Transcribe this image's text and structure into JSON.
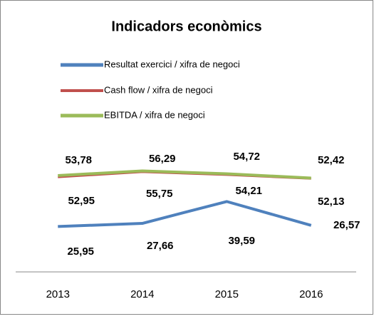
{
  "chart_data": {
    "type": "line",
    "title": "Indicadors econòmics",
    "categories": [
      "2013",
      "2014",
      "2015",
      "2016"
    ],
    "series": [
      {
        "name": "Resultat exercici / xifra de negoci",
        "color": "#4f81bd",
        "values": [
          25.95,
          27.66,
          39.59,
          26.57
        ],
        "value_labels": [
          "25,95",
          "27,66",
          "39,59",
          "26,57"
        ]
      },
      {
        "name": "Cash flow / xifra de negoci",
        "color": "#c0504d",
        "values": [
          52.95,
          55.75,
          54.21,
          52.13
        ],
        "value_labels": [
          "52,95",
          "55,75",
          "54,21",
          "52,13"
        ]
      },
      {
        "name": "EBITDA / xifra de negoci",
        "color": "#9bbb59",
        "values": [
          53.78,
          56.29,
          54.72,
          52.42
        ],
        "value_labels": [
          "53,78",
          "56,29",
          "54,72",
          "52,42"
        ]
      }
    ],
    "ylim": [
      0,
      60
    ]
  }
}
